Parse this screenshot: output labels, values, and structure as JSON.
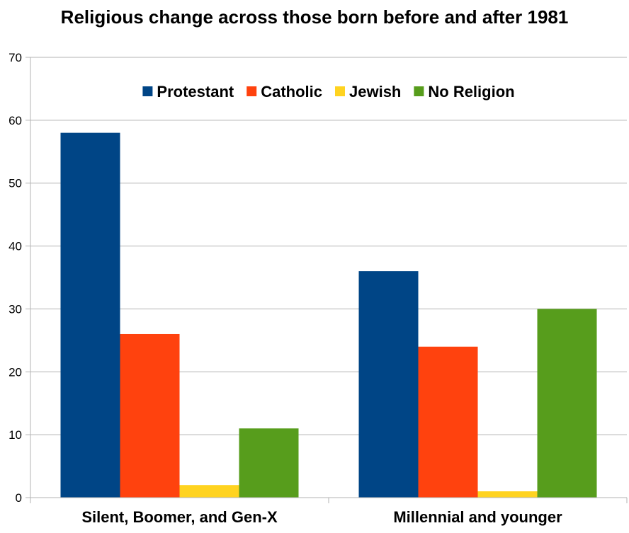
{
  "chart_data": {
    "type": "bar",
    "title": "Religious change across those born before and after 1981",
    "xlabel": "",
    "ylabel": "",
    "categories": [
      "Silent, Boomer, and Gen-X",
      "Millennial and younger"
    ],
    "series": [
      {
        "name": "Protestant",
        "values": [
          58,
          36
        ],
        "color": "#004586"
      },
      {
        "name": "Catholic",
        "values": [
          26,
          24
        ],
        "color": "#ff420e"
      },
      {
        "name": "Jewish",
        "values": [
          2,
          1
        ],
        "color": "#ffd320"
      },
      {
        "name": "No Religion",
        "values": [
          11,
          30
        ],
        "color": "#579d1c"
      }
    ],
    "ylim": [
      0,
      70
    ],
    "yticks": [
      "0",
      "10",
      "20",
      "30",
      "40",
      "50",
      "60",
      "70"
    ],
    "grid": true,
    "legend_position": "top-center",
    "colors": {
      "gridline": "#b3b3b3",
      "axis": "#b3b3b3",
      "background": "#ffffff"
    }
  }
}
